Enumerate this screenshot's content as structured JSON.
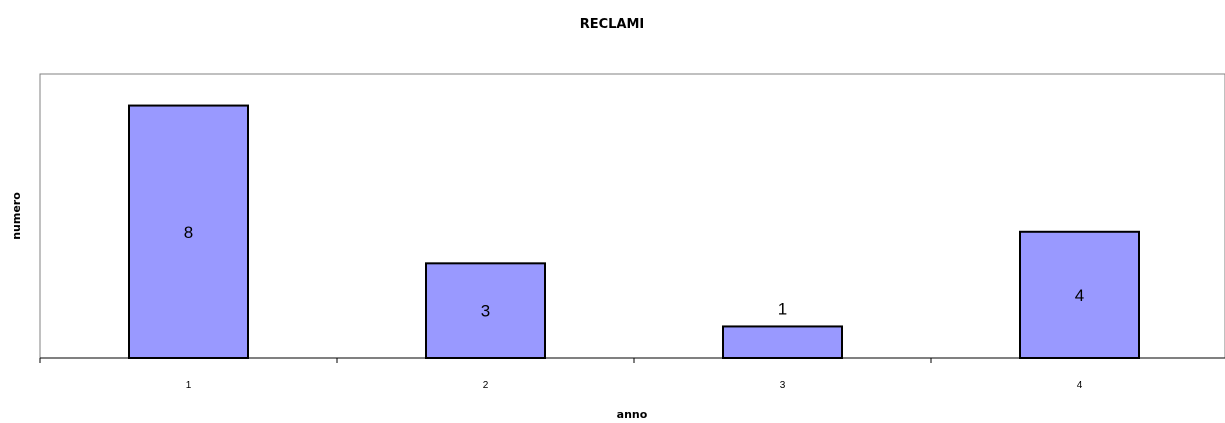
{
  "chart_data": {
    "type": "bar",
    "title": "RECLAMI",
    "xlabel": "anno",
    "ylabel": "numero",
    "categories": [
      "1",
      "2",
      "3",
      "4"
    ],
    "values": [
      8,
      3,
      1,
      4
    ],
    "ylim": [
      0,
      9
    ],
    "grid": false,
    "legend": "none",
    "bar_color": "#9999FF",
    "bar_stroke": "#000000",
    "plot_border": "#808080"
  }
}
